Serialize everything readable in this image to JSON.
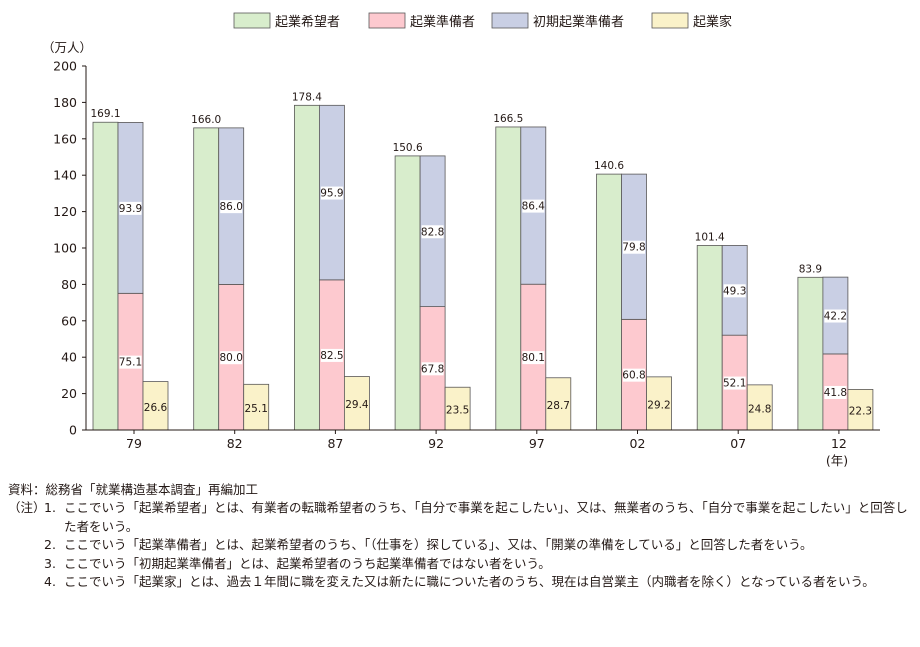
{
  "chart_data": {
    "type": "bar",
    "title": "",
    "ylabel": "（万人）",
    "xlabel": "",
    "x_unit": "(年)",
    "ylim": [
      0,
      200
    ],
    "yticks": [
      0,
      20,
      40,
      60,
      80,
      100,
      120,
      140,
      160,
      180,
      200
    ],
    "grid": false,
    "legend_position": "top",
    "categories": [
      "79",
      "82",
      "87",
      "92",
      "97",
      "02",
      "07",
      "12"
    ],
    "series": [
      {
        "name": "起業希望者",
        "color": "#d8edcc",
        "values": [
          169.1,
          166.0,
          178.4,
          150.6,
          166.5,
          140.6,
          101.4,
          83.9
        ]
      },
      {
        "name": "起業準備者",
        "color": "#fdc9cf",
        "values": [
          75.1,
          80.0,
          82.5,
          67.8,
          80.1,
          60.8,
          52.1,
          41.8
        ]
      },
      {
        "name": "初期起業準備者",
        "color": "#c9cfe4",
        "values": [
          93.9,
          86.0,
          95.9,
          82.8,
          86.4,
          79.8,
          49.3,
          42.2
        ]
      },
      {
        "name": "起業家",
        "color": "#faf2c9",
        "values": [
          26.6,
          25.1,
          29.4,
          23.5,
          28.7,
          29.2,
          24.8,
          22.3
        ]
      }
    ],
    "value_labels": {
      "hope": [
        "169.1",
        "166.0",
        "178.4",
        "150.6",
        "166.5",
        "140.6",
        "101.4",
        "83.9"
      ],
      "prep": [
        "75.1",
        "80.0",
        "82.5",
        "67.8",
        "80.1",
        "60.8",
        "52.1",
        "41.8"
      ],
      "early": [
        "93.9",
        "86.0",
        "95.9",
        "82.8",
        "86.4",
        "79.8",
        "49.3",
        "42.2"
      ],
      "ent": [
        "26.6",
        "25.1",
        "29.4",
        "23.5",
        "28.7",
        "29.2",
        "24.8",
        "22.3"
      ]
    }
  },
  "notes": {
    "source": "資料：総務省「就業構造基本調査」再編加工",
    "note_prefix": "（注）",
    "items": [
      {
        "num": "1.",
        "text": "ここでいう「起業希望者」とは、有業者の転職希望者のうち、「自分で事業を起こしたい」、又は、無業者のうち、「自分で事業を起こしたい」と回答した者をいう。"
      },
      {
        "num": "2.",
        "text": "ここでいう「起業準備者」とは、起業希望者のうち、「（仕事を）探している」、又は、「開業の準備をしている」と回答した者をいう。"
      },
      {
        "num": "3.",
        "text": "ここでいう「初期起業準備者」とは、起業希望者のうち起業準備者ではない者をいう。"
      },
      {
        "num": "4.",
        "text": "ここでいう「起業家」とは、過去１年間に職を変えた又は新たに職についた者のうち、現在は自営業主（内職者を除く）となっている者をいう。"
      }
    ]
  }
}
